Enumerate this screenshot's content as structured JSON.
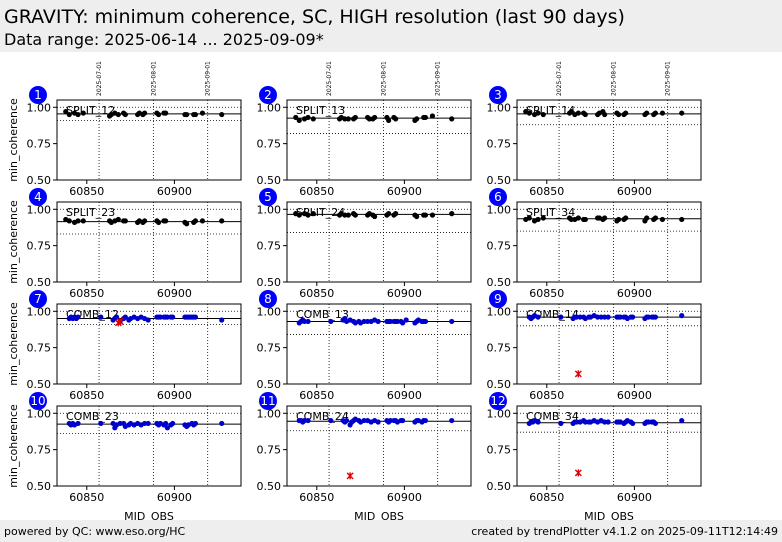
{
  "header": {
    "title": "GRAVITY: minimum coherence, SC, HIGH resolution (last 90 days)",
    "subtitle": "Data range: 2025-06-14 ... 2025-09-09*"
  },
  "footer": {
    "left": "powered by QC: www.eso.org/HC",
    "right": "created by trendPlotter v4.1.2 on 2025-09-11T12:14:49"
  },
  "colors": {
    "split_points": "#000000",
    "comb_points": "#0000cc",
    "outlier": "#dd0000",
    "badge": "#0000ff"
  },
  "chart_data": {
    "type": "scatter",
    "xlabel": "MJD_OBS",
    "ylabel": "min_coherence",
    "xlim": [
      60833,
      60938
    ],
    "ylim": [
      0.5,
      1.05
    ],
    "xticks": [
      60850,
      60900
    ],
    "yticks": [
      "0.50",
      "0.75",
      "1.00"
    ],
    "month_lines": [
      {
        "mjd": 60857,
        "label": "2025-07-01"
      },
      {
        "mjd": 60888,
        "label": "2025-08-01"
      },
      {
        "mjd": 60919,
        "label": "2025-09-01"
      }
    ],
    "panels": [
      {
        "num": "1",
        "label": "SPLIT_12",
        "kind": "split",
        "median": 0.955,
        "thresholds": [
          1.0,
          0.91
        ],
        "x": [
          60838,
          60840,
          60843,
          60845,
          60848,
          60863,
          60864,
          60866,
          60868,
          60871,
          60872,
          60879,
          60880,
          60882,
          60883,
          60890,
          60891,
          60894,
          60895,
          60906,
          60907,
          60911,
          60912,
          60916,
          60927
        ],
        "y": [
          0.97,
          0.95,
          0.96,
          0.95,
          0.96,
          0.94,
          0.95,
          0.96,
          0.95,
          0.96,
          0.95,
          0.95,
          0.96,
          0.95,
          0.96,
          0.96,
          0.95,
          0.96,
          0.96,
          0.95,
          0.95,
          0.95,
          0.95,
          0.96,
          0.95
        ]
      },
      {
        "num": "2",
        "label": "SPLIT_13",
        "kind": "split",
        "median": 0.925,
        "thresholds": [
          1.0,
          0.82
        ],
        "x": [
          60838,
          60840,
          60843,
          60845,
          60848,
          60863,
          60864,
          60866,
          60868,
          60871,
          60872,
          60879,
          60880,
          60882,
          60883,
          60890,
          60891,
          60894,
          60895,
          60906,
          60907,
          60911,
          60912,
          60916,
          60927
        ],
        "y": [
          0.93,
          0.91,
          0.92,
          0.93,
          0.92,
          0.92,
          0.93,
          0.92,
          0.92,
          0.92,
          0.93,
          0.93,
          0.92,
          0.92,
          0.93,
          0.93,
          0.91,
          0.93,
          0.92,
          0.91,
          0.92,
          0.93,
          0.93,
          0.94,
          0.92
        ]
      },
      {
        "num": "3",
        "label": "SPLIT_14",
        "kind": "split",
        "median": 0.955,
        "thresholds": [
          1.0,
          0.88
        ],
        "x": [
          60838,
          60840,
          60843,
          60845,
          60848,
          60863,
          60864,
          60866,
          60868,
          60871,
          60872,
          60879,
          60880,
          60882,
          60883,
          60890,
          60891,
          60894,
          60895,
          60906,
          60907,
          60911,
          60912,
          60916,
          60927
        ],
        "y": [
          0.97,
          0.96,
          0.95,
          0.96,
          0.95,
          0.96,
          0.97,
          0.95,
          0.96,
          0.96,
          0.95,
          0.95,
          0.96,
          0.97,
          0.95,
          0.96,
          0.95,
          0.95,
          0.96,
          0.95,
          0.96,
          0.95,
          0.96,
          0.96,
          0.96
        ]
      },
      {
        "num": "4",
        "label": "SPLIT_23",
        "kind": "split",
        "median": 0.915,
        "thresholds": [
          1.0,
          0.83
        ],
        "x": [
          60838,
          60840,
          60843,
          60845,
          60848,
          60863,
          60864,
          60866,
          60868,
          60871,
          60872,
          60879,
          60880,
          60882,
          60883,
          60890,
          60891,
          60894,
          60895,
          60906,
          60907,
          60911,
          60912,
          60916,
          60927
        ],
        "y": [
          0.93,
          0.92,
          0.91,
          0.92,
          0.92,
          0.92,
          0.91,
          0.92,
          0.93,
          0.92,
          0.92,
          0.91,
          0.92,
          0.91,
          0.92,
          0.92,
          0.91,
          0.92,
          0.92,
          0.91,
          0.9,
          0.91,
          0.92,
          0.92,
          0.92
        ]
      },
      {
        "num": "5",
        "label": "SPLIT_24",
        "kind": "split",
        "median": 0.965,
        "thresholds": [
          1.0,
          0.84
        ],
        "x": [
          60838,
          60840,
          60843,
          60845,
          60848,
          60863,
          60864,
          60866,
          60868,
          60871,
          60872,
          60879,
          60880,
          60882,
          60883,
          60890,
          60891,
          60894,
          60895,
          60906,
          60907,
          60911,
          60912,
          60916,
          60927
        ],
        "y": [
          0.97,
          0.96,
          0.97,
          0.96,
          0.97,
          0.96,
          0.97,
          0.96,
          0.96,
          0.97,
          0.96,
          0.96,
          0.97,
          0.96,
          0.95,
          0.96,
          0.97,
          0.96,
          0.97,
          0.96,
          0.95,
          0.96,
          0.96,
          0.96,
          0.97
        ]
      },
      {
        "num": "6",
        "label": "SPLIT_34",
        "kind": "split",
        "median": 0.935,
        "thresholds": [
          1.0,
          0.85
        ],
        "x": [
          60838,
          60840,
          60843,
          60845,
          60848,
          60863,
          60864,
          60866,
          60868,
          60871,
          60872,
          60879,
          60880,
          60882,
          60883,
          60890,
          60891,
          60894,
          60895,
          60906,
          60907,
          60911,
          60912,
          60916,
          60927
        ],
        "y": [
          0.93,
          0.94,
          0.92,
          0.93,
          0.94,
          0.94,
          0.93,
          0.93,
          0.94,
          0.93,
          0.93,
          0.94,
          0.94,
          0.93,
          0.94,
          0.92,
          0.93,
          0.93,
          0.94,
          0.92,
          0.94,
          0.93,
          0.94,
          0.93,
          0.93
        ]
      },
      {
        "num": "7",
        "label": "COMB_12",
        "kind": "comb",
        "median": 0.95,
        "thresholds": [
          1.0,
          0.91
        ],
        "x": [
          60840,
          60841,
          60842,
          60843,
          60844,
          60845,
          60858,
          60865,
          60866,
          60867,
          60869,
          60871,
          60872,
          60874,
          60875,
          60877,
          60879,
          60881,
          60883,
          60885,
          60890,
          60891,
          60892,
          60894,
          60895,
          60896,
          60898,
          60899,
          60906,
          60907,
          60908,
          60909,
          60910,
          60911,
          60912,
          60927
        ],
        "y": [
          0.95,
          0.96,
          0.95,
          0.96,
          0.95,
          0.96,
          0.96,
          0.94,
          0.95,
          0.96,
          0.93,
          0.95,
          0.96,
          0.94,
          0.95,
          0.96,
          0.95,
          0.96,
          0.95,
          0.94,
          0.96,
          0.96,
          0.96,
          0.96,
          0.96,
          0.96,
          0.96,
          0.96,
          0.96,
          0.96,
          0.96,
          0.96,
          0.96,
          0.96,
          0.96,
          0.94
        ],
        "outliers": {
          "x": [
            60868,
            60869
          ],
          "y": [
            0.92,
            0.93
          ]
        }
      },
      {
        "num": "8",
        "label": "COMB_13",
        "kind": "comb",
        "median": 0.93,
        "thresholds": [
          1.0,
          0.84
        ],
        "x": [
          60840,
          60841,
          60842,
          60843,
          60845,
          60858,
          60865,
          60866,
          60867,
          60869,
          60871,
          60872,
          60874,
          60875,
          60877,
          60879,
          60881,
          60883,
          60885,
          60890,
          60891,
          60892,
          60894,
          60895,
          60896,
          60898,
          60899,
          60901,
          60906,
          60907,
          60908,
          60910,
          60911,
          60912,
          60927
        ],
        "y": [
          0.92,
          0.93,
          0.94,
          0.93,
          0.93,
          0.93,
          0.94,
          0.95,
          0.93,
          0.94,
          0.93,
          0.92,
          0.93,
          0.92,
          0.93,
          0.93,
          0.93,
          0.94,
          0.93,
          0.93,
          0.93,
          0.93,
          0.93,
          0.93,
          0.93,
          0.93,
          0.92,
          0.94,
          0.92,
          0.93,
          0.94,
          0.93,
          0.93,
          0.93,
          0.93
        ]
      },
      {
        "num": "9",
        "label": "COMB_14",
        "kind": "comb",
        "median": 0.96,
        "thresholds": [
          1.0,
          0.9
        ],
        "x": [
          60840,
          60841,
          60842,
          60843,
          60845,
          60858,
          60865,
          60866,
          60867,
          60869,
          60871,
          60872,
          60874,
          60875,
          60877,
          60879,
          60881,
          60883,
          60885,
          60890,
          60891,
          60892,
          60894,
          60895,
          60896,
          60898,
          60899,
          60906,
          60907,
          60908,
          60910,
          60911,
          60912,
          60927
        ],
        "y": [
          0.96,
          0.95,
          0.96,
          0.97,
          0.96,
          0.96,
          0.95,
          0.96,
          0.96,
          0.96,
          0.96,
          0.95,
          0.96,
          0.96,
          0.97,
          0.96,
          0.96,
          0.96,
          0.96,
          0.96,
          0.96,
          0.96,
          0.96,
          0.96,
          0.95,
          0.96,
          0.96,
          0.95,
          0.96,
          0.96,
          0.96,
          0.96,
          0.96,
          0.97
        ],
        "outliers": {
          "x": [
            60868
          ],
          "y": [
            0.57
          ]
        }
      },
      {
        "num": "10",
        "label": "COMB_23",
        "kind": "comb",
        "median": 0.925,
        "thresholds": [
          1.0,
          0.86
        ],
        "x": [
          60840,
          60841,
          60842,
          60843,
          60845,
          60858,
          60865,
          60866,
          60867,
          60869,
          60871,
          60872,
          60874,
          60875,
          60877,
          60879,
          60881,
          60883,
          60885,
          60890,
          60891,
          60892,
          60894,
          60895,
          60896,
          60898,
          60899,
          60906,
          60907,
          60908,
          60910,
          60911,
          60912,
          60927
        ],
        "y": [
          0.93,
          0.92,
          0.93,
          0.92,
          0.93,
          0.93,
          0.93,
          0.9,
          0.92,
          0.93,
          0.93,
          0.91,
          0.92,
          0.93,
          0.92,
          0.93,
          0.92,
          0.93,
          0.93,
          0.93,
          0.92,
          0.93,
          0.92,
          0.93,
          0.9,
          0.92,
          0.93,
          0.92,
          0.91,
          0.92,
          0.93,
          0.92,
          0.93,
          0.93
        ]
      },
      {
        "num": "11",
        "label": "COMB_24",
        "kind": "comb",
        "median": 0.945,
        "thresholds": [
          1.0,
          0.88
        ],
        "x": [
          60840,
          60841,
          60842,
          60843,
          60845,
          60858,
          60865,
          60866,
          60867,
          60869,
          60870,
          60871,
          60872,
          60874,
          60875,
          60877,
          60879,
          60881,
          60883,
          60885,
          60890,
          60891,
          60892,
          60894,
          60895,
          60896,
          60898,
          60899,
          60906,
          60907,
          60908,
          60910,
          60911,
          60912,
          60927
        ],
        "y": [
          0.95,
          0.95,
          0.94,
          0.95,
          0.95,
          0.95,
          0.95,
          0.94,
          0.95,
          0.92,
          0.94,
          0.95,
          0.96,
          0.95,
          0.94,
          0.95,
          0.95,
          0.94,
          0.95,
          0.94,
          0.95,
          0.94,
          0.95,
          0.95,
          0.95,
          0.94,
          0.95,
          0.95,
          0.94,
          0.95,
          0.95,
          0.94,
          0.95,
          0.95,
          0.95
        ],
        "outliers": {
          "x": [
            60869
          ],
          "y": [
            0.57
          ]
        }
      },
      {
        "num": "12",
        "label": "COMB_34",
        "kind": "comb",
        "median": 0.935,
        "thresholds": [
          1.0,
          0.87
        ],
        "x": [
          60840,
          60841,
          60842,
          60843,
          60845,
          60858,
          60865,
          60866,
          60867,
          60869,
          60871,
          60872,
          60874,
          60875,
          60877,
          60879,
          60881,
          60883,
          60885,
          60890,
          60891,
          60892,
          60894,
          60895,
          60896,
          60898,
          60899,
          60906,
          60907,
          60908,
          60910,
          60911,
          60912,
          60927
        ],
        "y": [
          0.93,
          0.94,
          0.94,
          0.95,
          0.94,
          0.93,
          0.93,
          0.94,
          0.94,
          0.94,
          0.95,
          0.94,
          0.94,
          0.94,
          0.95,
          0.94,
          0.95,
          0.94,
          0.94,
          0.94,
          0.94,
          0.94,
          0.93,
          0.94,
          0.95,
          0.94,
          0.93,
          0.93,
          0.94,
          0.94,
          0.94,
          0.94,
          0.93,
          0.95
        ],
        "outliers": {
          "x": [
            60868
          ],
          "y": [
            0.59
          ]
        }
      }
    ]
  }
}
